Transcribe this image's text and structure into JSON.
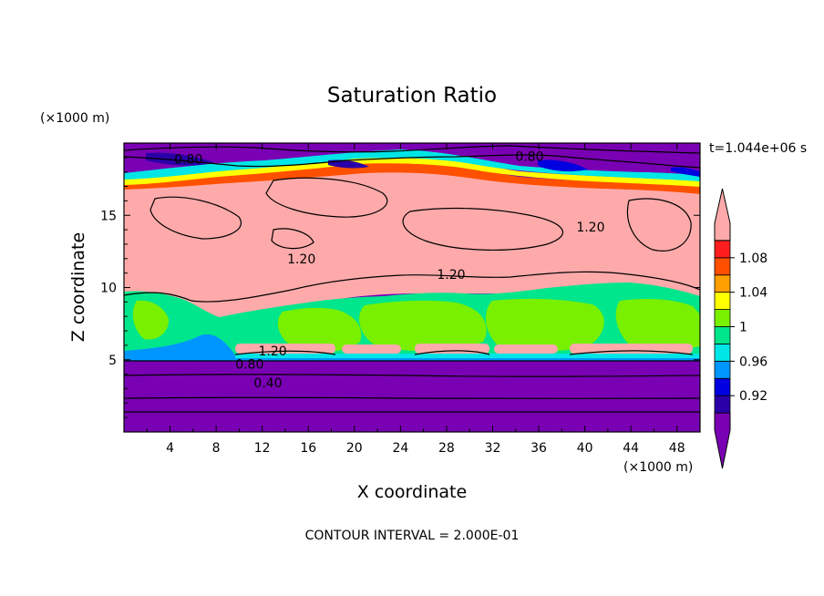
{
  "chart_data": {
    "type": "heatmap",
    "title": "Saturation Ratio",
    "xlabel": "X coordinate",
    "ylabel": "Z coordinate",
    "x_unit": "(×1000 m)",
    "y_unit": "(×1000 m)",
    "time_label": "t=1.044e+06 s",
    "footer": "CONTOUR INTERVAL = 2.000E-01",
    "xlim": [
      0,
      50
    ],
    "ylim": [
      0,
      20
    ],
    "x_ticks": [
      "4",
      "8",
      "12",
      "16",
      "20",
      "24",
      "28",
      "32",
      "36",
      "40",
      "44",
      "48"
    ],
    "y_ticks": [
      "5",
      "10",
      "15"
    ],
    "colorbar": {
      "levels": [
        0.9,
        0.92,
        0.94,
        0.96,
        0.98,
        1.0,
        1.02,
        1.04,
        1.06,
        1.08,
        1.1
      ],
      "labels": [
        "0.92",
        "0.96",
        "1",
        "1.04",
        "1.08"
      ],
      "colors": [
        "#7a00b4",
        "#2a00a8",
        "#0000e0",
        "#0096ff",
        "#00e6e6",
        "#00e68c",
        "#78f000",
        "#ffff00",
        "#ffa000",
        "#ff5000",
        "#ff1e1e",
        "#ffaaaa"
      ]
    },
    "contour_labels": [
      {
        "text": "0.80",
        "x": 5.6,
        "z": 18.9
      },
      {
        "text": "0.80",
        "x": 35.2,
        "z": 19.1
      },
      {
        "text": "1.20",
        "x": 40.5,
        "z": 14.2
      },
      {
        "text": "1.20",
        "x": 15.4,
        "z": 12.0
      },
      {
        "text": "1.20",
        "x": 28.4,
        "z": 10.9
      },
      {
        "text": "1.20",
        "x": 12.9,
        "z": 5.6
      },
      {
        "text": "0.80",
        "x": 10.9,
        "z": 4.7
      },
      {
        "text": "0.40",
        "x": 12.5,
        "z": 3.4
      }
    ]
  }
}
